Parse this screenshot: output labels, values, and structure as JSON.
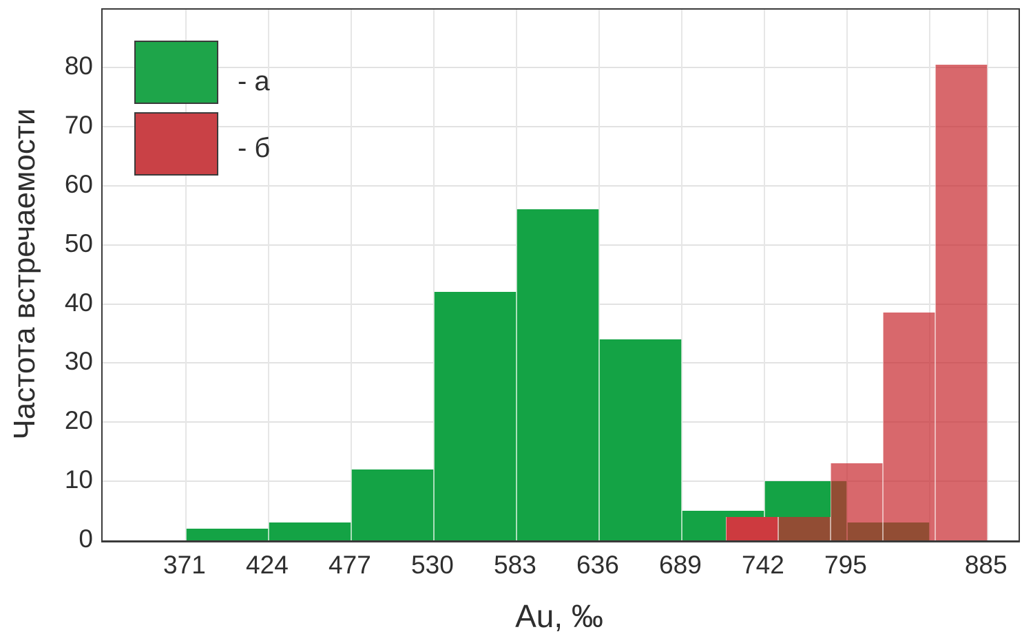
{
  "chart_data": {
    "type": "bar",
    "subtype": "overlaid-histograms",
    "title": "",
    "xlabel": "Au, ‰",
    "ylabel": "Частота встречаемости",
    "x_ticks": [
      371,
      424,
      477,
      530,
      583,
      636,
      689,
      742,
      795,
      885
    ],
    "y_ticks": [
      0,
      10,
      20,
      30,
      40,
      50,
      60,
      70,
      80
    ],
    "x_gridlines": [
      371,
      424,
      477,
      530,
      583,
      636,
      689,
      742,
      795,
      848,
      885
    ],
    "xlim": [
      317.6,
      905.0
    ],
    "ylim": [
      0,
      89.8
    ],
    "grid": true,
    "legend_position": "top-left-inside",
    "series": [
      {
        "name": "а",
        "bin_edges": [
          371,
          424,
          477,
          530,
          583,
          636,
          689,
          742,
          795,
          848
        ],
        "values": [
          2,
          3,
          12,
          42,
          56,
          34,
          5,
          10,
          3
        ]
      },
      {
        "name": "б",
        "bin_edges": [
          717.5,
          751,
          784.5,
          818,
          851.5,
          885
        ],
        "values": [
          4,
          4,
          13,
          38.5,
          80.5
        ]
      }
    ],
    "legend": [
      {
        "swatch": "green",
        "label": "- а"
      },
      {
        "swatch": "red",
        "label": "- б"
      }
    ]
  },
  "colors": {
    "series_a_green": "#14a345",
    "series_b_red_base": "#c8282d",
    "series_b_overlay_alpha": 0.7,
    "series_b_first_bar_solid": "#cd3a3f",
    "legend_green": "#1ea54a",
    "legend_red": "#c94146",
    "axis_frame": "#3a3a3a",
    "gridline": "#e2e2e2",
    "text": "#2e2e2e"
  }
}
